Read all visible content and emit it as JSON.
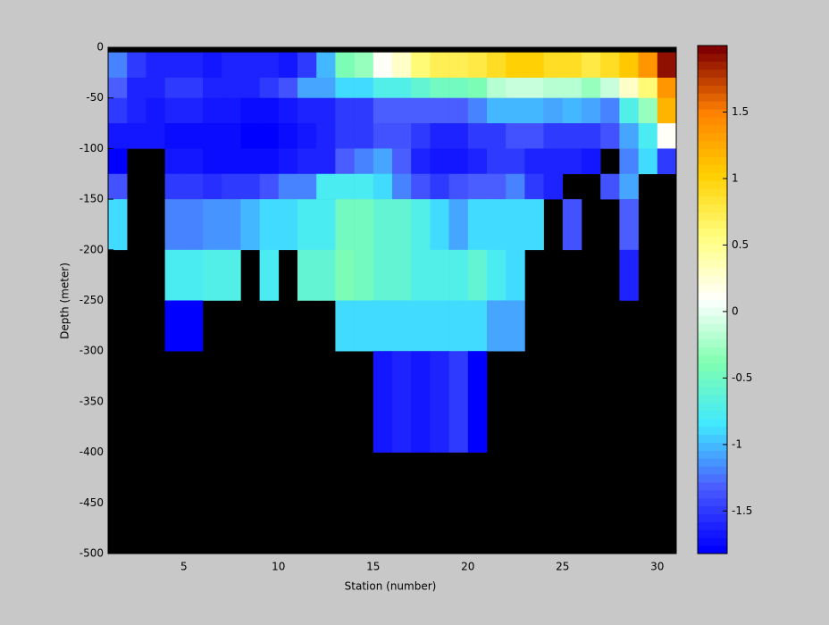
{
  "chart_data": {
    "type": "heatmap",
    "xlabel": "Station (number)",
    "ylabel": "Depth (meter)",
    "xlim": [
      1,
      31
    ],
    "xticks": [
      5,
      10,
      15,
      20,
      25,
      30
    ],
    "ylim": [
      -500,
      0
    ],
    "yticks": [
      0,
      -50,
      -100,
      -150,
      -200,
      -250,
      -300,
      -350,
      -400,
      -450,
      -500
    ],
    "background": "#000000",
    "x_edges": [
      1,
      2,
      3,
      4,
      5,
      6,
      7,
      8,
      9,
      10,
      11,
      12,
      13,
      14,
      15,
      16,
      17,
      18,
      19,
      20,
      21,
      22,
      23,
      24,
      25,
      26,
      27,
      28,
      29,
      30,
      31
    ],
    "y_edges": [
      -5,
      -30,
      -50,
      -75,
      -100,
      -125,
      -150,
      -200,
      -250,
      -300,
      -400
    ],
    "values": [
      [
        -1.2,
        -1.5,
        -1.6,
        -1.6,
        -1.6,
        -1.7,
        -1.6,
        -1.6,
        -1.6,
        -1.7,
        -1.5,
        -1.0,
        -0.4,
        -0.3,
        0.1,
        0.3,
        0.6,
        0.7,
        0.7,
        0.8,
        0.9,
        1.0,
        1.0,
        0.9,
        0.9,
        0.8,
        0.9,
        1.1,
        1.4,
        1.9
      ],
      [
        -1.3,
        -1.6,
        -1.6,
        -1.5,
        -1.5,
        -1.6,
        -1.6,
        -1.6,
        -1.5,
        -1.4,
        -1.1,
        -1.1,
        -0.9,
        -0.9,
        -0.7,
        -0.7,
        -0.6,
        -0.5,
        -0.5,
        -0.4,
        -0.2,
        -0.1,
        -0.1,
        -0.2,
        -0.2,
        -0.3,
        -0.1,
        0.3,
        0.6,
        1.4
      ],
      [
        -1.5,
        -1.6,
        -1.7,
        -1.6,
        -1.6,
        -1.7,
        -1.7,
        -1.75,
        -1.75,
        -1.7,
        -1.6,
        -1.6,
        -1.5,
        -1.5,
        -1.3,
        -1.3,
        -1.3,
        -1.3,
        -1.3,
        -1.2,
        -1.0,
        -1.0,
        -1.0,
        -1.1,
        -1.0,
        -1.1,
        -1.2,
        -0.7,
        -0.3,
        1.2
      ],
      [
        -1.7,
        -1.7,
        -1.7,
        -1.75,
        -1.75,
        -1.75,
        -1.75,
        -1.8,
        -1.8,
        -1.75,
        -1.7,
        -1.6,
        -1.5,
        -1.5,
        -1.4,
        -1.4,
        -1.5,
        -1.6,
        -1.6,
        -1.5,
        -1.5,
        -1.4,
        -1.4,
        -1.5,
        -1.5,
        -1.5,
        -1.4,
        -1.1,
        -0.8,
        0.1
      ],
      [
        -1.8,
        null,
        null,
        -1.7,
        -1.7,
        -1.75,
        -1.75,
        -1.75,
        -1.75,
        -1.7,
        -1.6,
        -1.6,
        -1.3,
        -1.2,
        -1.1,
        -1.3,
        -1.6,
        -1.7,
        -1.7,
        -1.6,
        -1.5,
        -1.5,
        -1.6,
        -1.6,
        -1.6,
        -1.7,
        null,
        -1.2,
        -0.9,
        -1.5
      ],
      [
        -1.4,
        null,
        null,
        -1.5,
        -1.5,
        -1.55,
        -1.5,
        -1.5,
        -1.4,
        -1.2,
        -1.2,
        -0.8,
        -0.8,
        -0.8,
        -0.9,
        -1.2,
        -1.4,
        -1.5,
        -1.4,
        -1.3,
        -1.3,
        -1.2,
        -1.5,
        -1.6,
        null,
        null,
        -1.4,
        -1.1,
        null,
        null
      ],
      [
        -0.9,
        null,
        null,
        -1.2,
        -1.2,
        -1.15,
        -1.15,
        -1.0,
        -0.9,
        -0.9,
        -0.8,
        -0.8,
        -0.5,
        -0.5,
        -0.6,
        -0.6,
        -0.7,
        -0.9,
        -1.1,
        -0.9,
        -0.9,
        -0.9,
        -0.9,
        null,
        -1.4,
        null,
        null,
        -1.3,
        null,
        null
      ],
      [
        null,
        null,
        null,
        -0.8,
        -0.8,
        -0.7,
        -0.7,
        null,
        -0.8,
        null,
        -0.6,
        -0.6,
        -0.4,
        -0.5,
        -0.6,
        -0.6,
        -0.7,
        -0.7,
        -0.7,
        -0.6,
        -0.8,
        -0.9,
        null,
        null,
        null,
        null,
        null,
        -1.6,
        null,
        null
      ],
      [
        null,
        null,
        null,
        -1.8,
        -1.8,
        null,
        null,
        null,
        null,
        null,
        null,
        null,
        -0.9,
        -0.9,
        -0.9,
        -0.9,
        -0.9,
        -0.9,
        -0.9,
        -0.9,
        -1.1,
        -1.1,
        null,
        null,
        null,
        null,
        null,
        null,
        null,
        null
      ],
      [
        null,
        null,
        null,
        null,
        null,
        null,
        null,
        null,
        null,
        null,
        null,
        null,
        null,
        null,
        -1.65,
        -1.6,
        -1.65,
        -1.6,
        -1.5,
        -1.85,
        null,
        null,
        null,
        null,
        null,
        null,
        null,
        null,
        null,
        null
      ]
    ],
    "clim": [
      -1.82,
      2.0
    ],
    "colormap": [
      "#0000ff",
      "#4a5cff",
      "#40e8ff",
      "#80ffb0",
      "#ffffff",
      "#ffff80",
      "#ffd000",
      "#ff8000",
      "#800000"
    ],
    "colorbar_ticks": [
      -1.5,
      -1,
      -0.5,
      0,
      0.5,
      1,
      1.5
    ]
  }
}
